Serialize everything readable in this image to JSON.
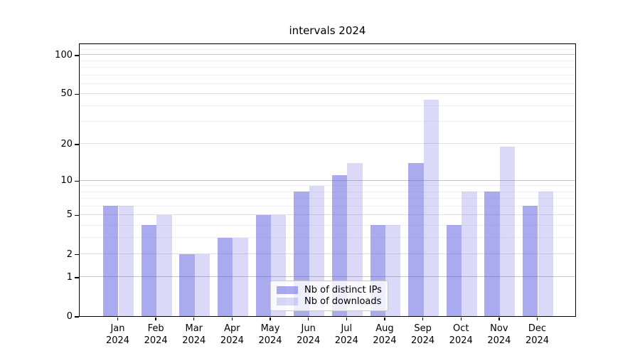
{
  "chart_data": {
    "type": "bar",
    "title": "intervals 2024",
    "categories": [
      "Jan",
      "Feb",
      "Mar",
      "Apr",
      "May",
      "Jun",
      "Jul",
      "Aug",
      "Sep",
      "Oct",
      "Nov",
      "Dec"
    ],
    "year_label": "2024",
    "series": [
      {
        "name": "Nb of distinct IPs",
        "color": "rgba(85,85,221,0.5)",
        "color_hex": "#aaaaee",
        "values": [
          6,
          4,
          2,
          3,
          5,
          8,
          11,
          4,
          14,
          4,
          8,
          6
        ]
      },
      {
        "name": "Nb of downloads",
        "color": "rgba(85,85,221,0.22)",
        "color_hex": "#d8d8f8",
        "values": [
          6,
          5,
          2,
          3,
          5,
          9,
          14,
          4,
          45,
          8,
          19,
          8
        ]
      }
    ],
    "y_scale": "log1p",
    "y_ticks": [
      0,
      1,
      2,
      5,
      10,
      20,
      50,
      100
    ],
    "y_minor_ticks": [
      3,
      4,
      6,
      7,
      8,
      9,
      30,
      40,
      60,
      70,
      80,
      90,
      110,
      120
    ],
    "ylim": [
      0,
      124
    ],
    "xlabel": "",
    "ylabel": "",
    "grid": true,
    "legend_position": "lower center"
  }
}
